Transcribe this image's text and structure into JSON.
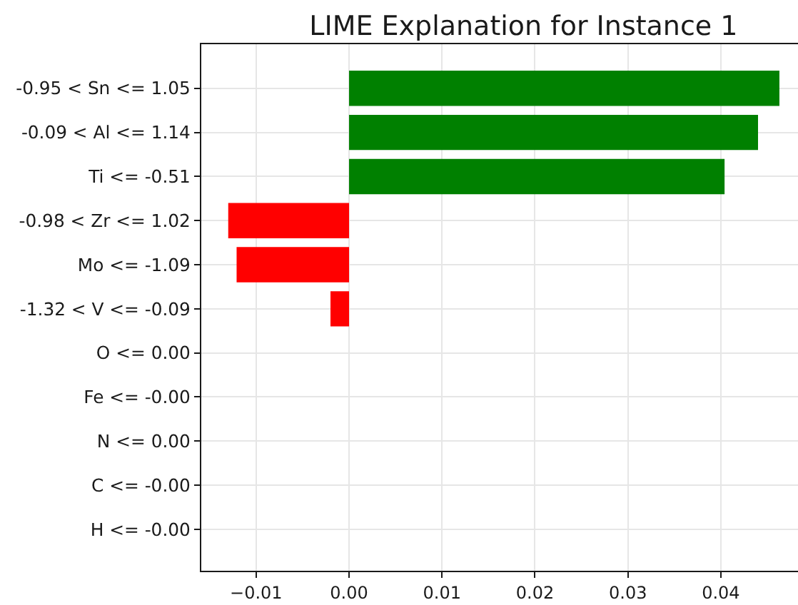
{
  "chart_data": {
    "type": "bar",
    "orientation": "horizontal",
    "title": "LIME Explanation for Instance 1",
    "categories": [
      "-0.95 < Sn <= 1.05",
      "-0.09 < Al <= 1.14",
      "Ti <= -0.51",
      "-0.98 < Zr <= 1.02",
      "Mo <= -1.09",
      "-1.32 < V <= -0.09",
      "O <= 0.00",
      "Fe <= -0.00",
      "N <= 0.00",
      "C <= -0.00",
      "H <= -0.00"
    ],
    "values": [
      0.0463,
      0.044,
      0.0404,
      -0.013,
      -0.0121,
      -0.002,
      0,
      0,
      0,
      0,
      0
    ],
    "colors": [
      "#008000",
      "#008000",
      "#008000",
      "#ff0000",
      "#ff0000",
      "#ff0000",
      "#ff0000",
      "#ff0000",
      "#ff0000",
      "#ff0000",
      "#ff0000"
    ],
    "xlim": [
      -0.0159,
      0.0483
    ],
    "xticks": [
      {
        "value": -0.01,
        "label": "−0.01"
      },
      {
        "value": 0,
        "label": "0.00"
      },
      {
        "value": 0.01,
        "label": "0.01"
      },
      {
        "value": 0.02,
        "label": "0.02"
      },
      {
        "value": 0.03,
        "label": "0.03"
      },
      {
        "value": 0.04,
        "label": "0.04"
      }
    ],
    "grid": true
  }
}
